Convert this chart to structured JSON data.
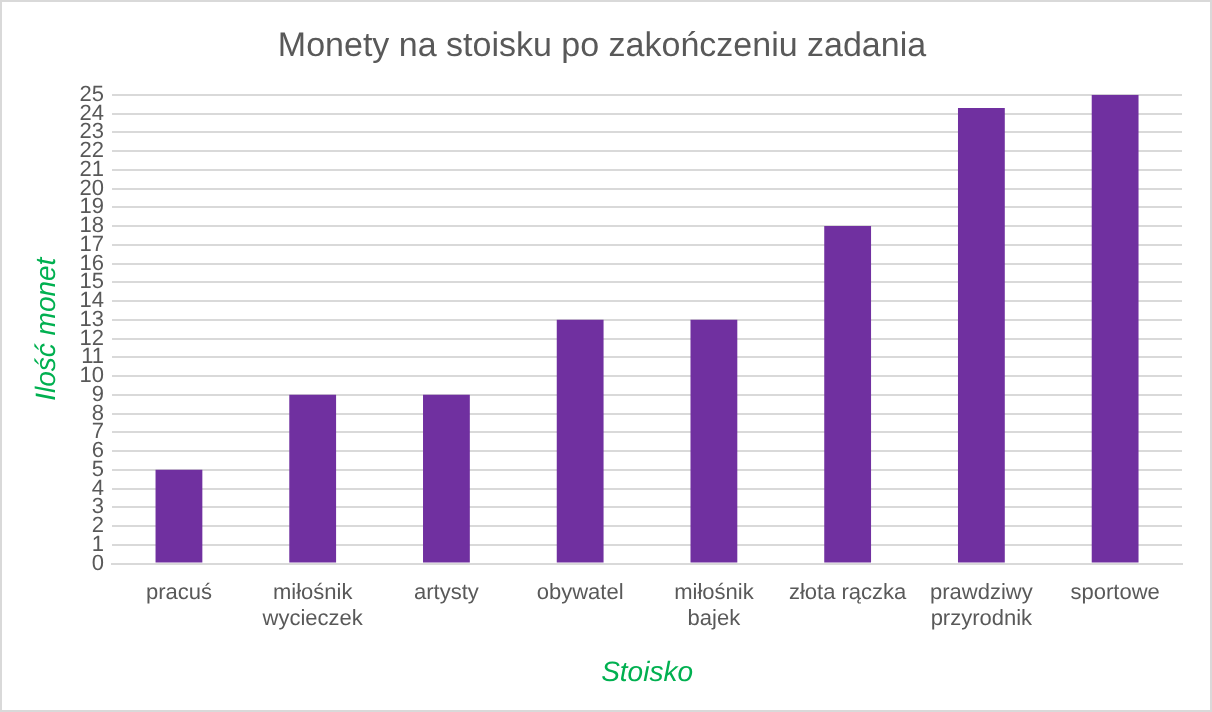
{
  "chart_data": {
    "type": "bar",
    "title": "Monety na stoisku po zakończeniu zadania",
    "xlabel": "Stoisko",
    "ylabel": "Ilość monet",
    "categories": [
      "pracuś",
      "miłośnik wycieczek",
      "artysty",
      "obywatel",
      "miłośnik bajek",
      "złota rączka",
      "prawdziwy przyrodnik",
      "sportowe"
    ],
    "values": [
      5,
      9,
      9,
      13,
      13,
      18,
      24.3,
      25
    ],
    "color": "#7030a0",
    "ylim": [
      0,
      25
    ],
    "yticks": [
      0,
      1,
      2,
      3,
      4,
      5,
      6,
      7,
      8,
      9,
      10,
      11,
      12,
      13,
      14,
      15,
      16,
      17,
      18,
      19,
      20,
      21,
      22,
      23,
      24,
      25
    ],
    "grid": "y",
    "legend": false
  }
}
